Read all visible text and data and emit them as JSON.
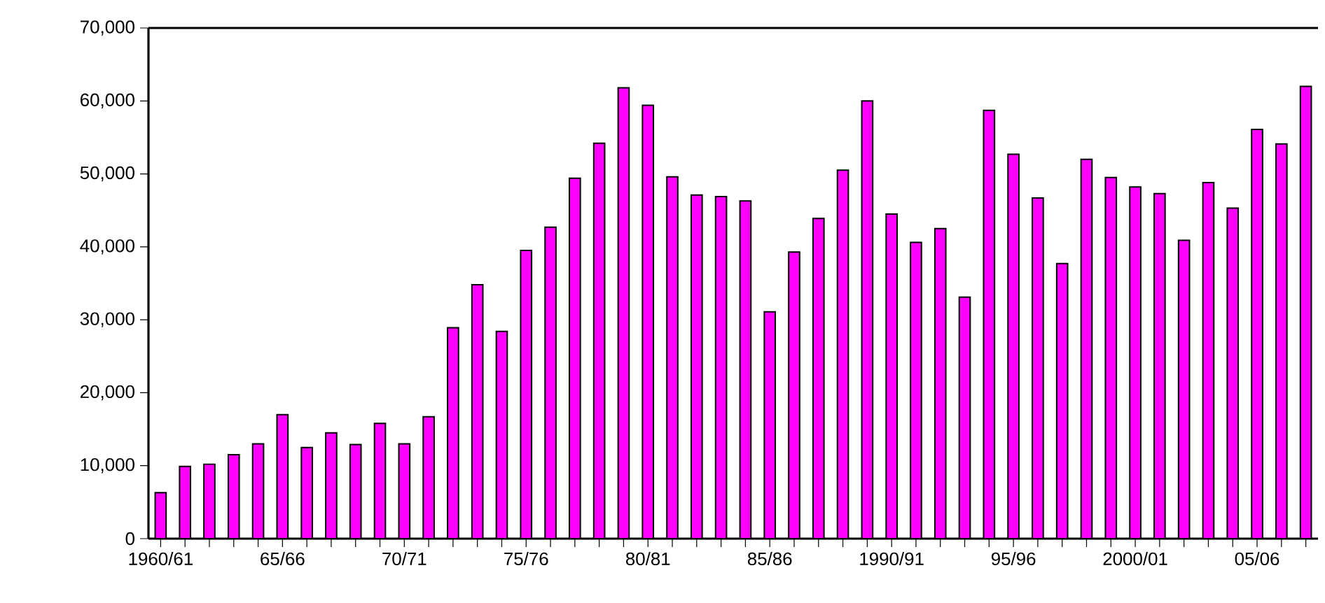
{
  "chart_data": {
    "type": "bar",
    "categories": [
      "1960/61",
      null,
      null,
      null,
      null,
      "65/66",
      null,
      null,
      null,
      null,
      "70/71",
      null,
      null,
      null,
      null,
      "75/76",
      null,
      null,
      null,
      null,
      "80/81",
      null,
      null,
      null,
      null,
      "85/86",
      null,
      null,
      null,
      null,
      "1990/91",
      null,
      null,
      null,
      null,
      "95/96",
      null,
      null,
      null,
      null,
      "2000/01",
      null,
      null,
      null,
      null,
      "05/06",
      null,
      null
    ],
    "values": [
      6300,
      9900,
      10200,
      11500,
      13000,
      17000,
      12500,
      14500,
      12900,
      15800,
      13000,
      16700,
      28900,
      34800,
      28400,
      39500,
      42700,
      49400,
      54200,
      61800,
      59400,
      49600,
      47100,
      46900,
      46300,
      31100,
      39300,
      43900,
      50500,
      60000,
      44500,
      40600,
      42500,
      33100,
      58700,
      52700,
      46700,
      37700,
      52000,
      49500,
      48200,
      47300,
      40900,
      48800,
      45300,
      56100,
      54100,
      62000
    ],
    "color": "#ff00ff",
    "ylim": [
      0,
      70000
    ],
    "yticks": [
      0,
      {
        "value": 10000,
        "label": "10,000"
      },
      {
        "value": 20000,
        "label": "20,000"
      },
      {
        "value": 30000,
        "label": "30,000"
      },
      {
        "value": 40000,
        "label": "40,000"
      },
      {
        "value": 50000,
        "label": "50,000"
      },
      {
        "value": 60000,
        "label": "60,000"
      },
      {
        "value": 70000,
        "label": "70,000"
      }
    ]
  }
}
